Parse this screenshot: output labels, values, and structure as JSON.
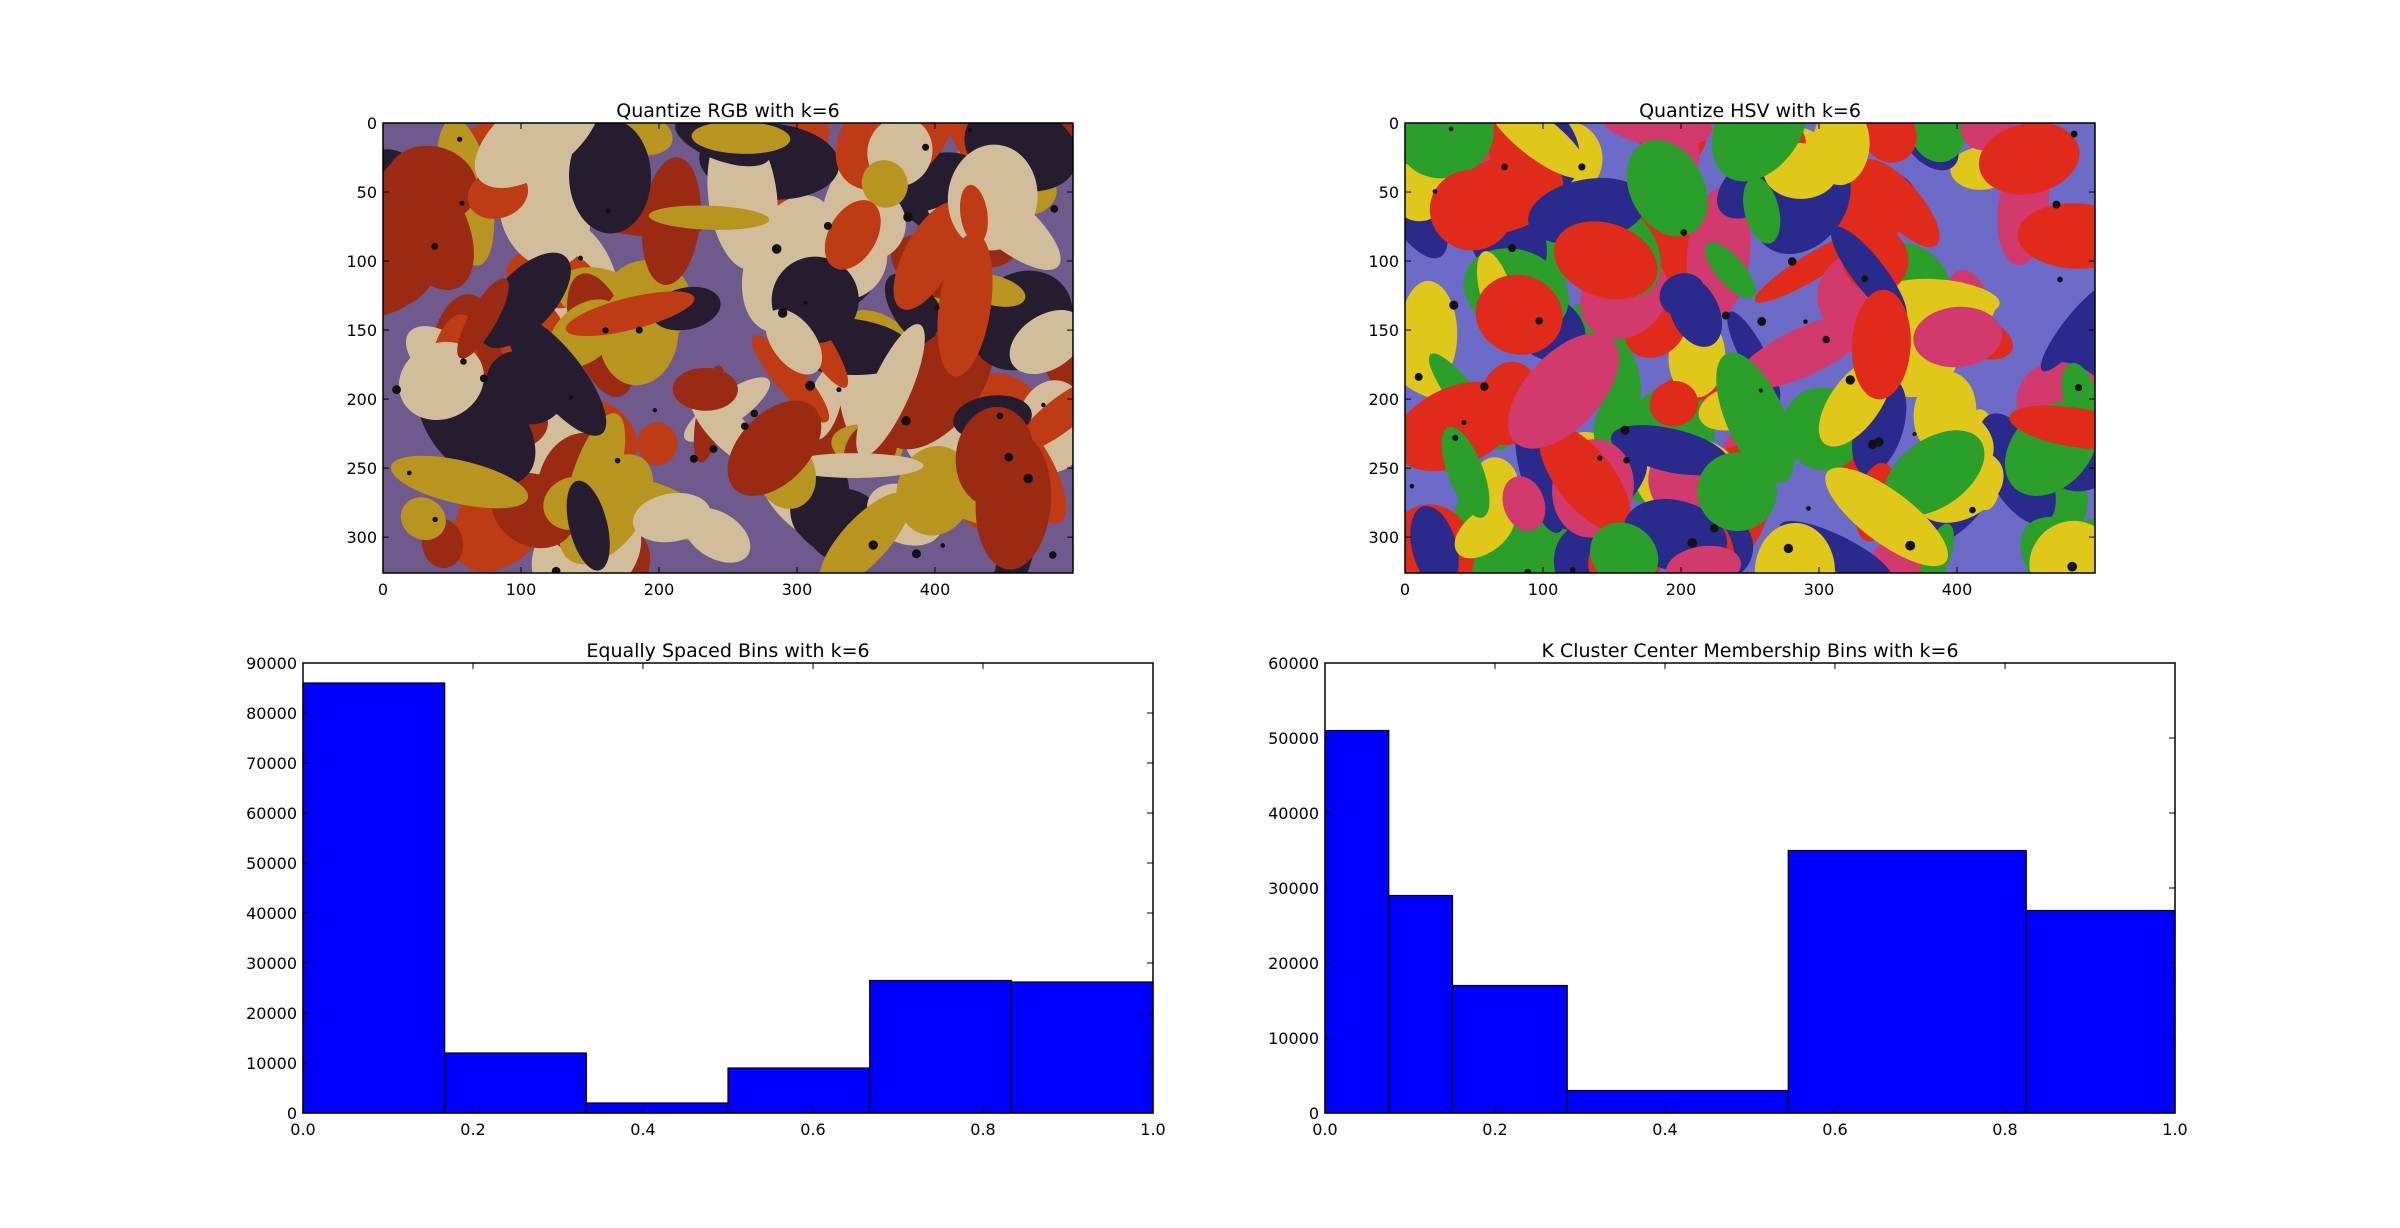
{
  "chart_data": [
    {
      "type": "image",
      "title": "Quantize RGB with k=6",
      "x_ticks": [
        "0",
        "100",
        "200",
        "300",
        "400"
      ],
      "y_ticks": [
        "0",
        "50",
        "100",
        "150",
        "200",
        "250",
        "300"
      ],
      "x_range": [
        0,
        500
      ],
      "y_range": [
        0,
        326
      ],
      "palette": [
        "#6e5a8c",
        "#b8951f",
        "#bf3b14",
        "#d2bd9a",
        "#251c30",
        "#9b2a12"
      ]
    },
    {
      "type": "image",
      "title": "Quantize HSV with k=6",
      "x_ticks": [
        "0",
        "100",
        "200",
        "300",
        "400"
      ],
      "y_ticks": [
        "0",
        "50",
        "100",
        "150",
        "200",
        "250",
        "300"
      ],
      "x_range": [
        0,
        500
      ],
      "y_range": [
        0,
        326
      ],
      "palette": [
        "#6c6cc8",
        "#e02a1a",
        "#e0c81a",
        "#2aa02a",
        "#d23a6e",
        "#2a2a8c"
      ]
    },
    {
      "type": "bar",
      "title": "Equally Spaced Bins with k=6",
      "bin_edges": [
        0.0,
        0.1667,
        0.3333,
        0.5,
        0.6667,
        0.8333,
        1.0
      ],
      "values": [
        86000,
        12000,
        2000,
        9000,
        26500,
        26200
      ],
      "xlim": [
        0,
        1
      ],
      "ylim": [
        0,
        90000
      ],
      "x_ticks": [
        "0.0",
        "0.2",
        "0.4",
        "0.6",
        "0.8",
        "1.0"
      ],
      "y_ticks": [
        "0",
        "10000",
        "20000",
        "30000",
        "40000",
        "50000",
        "60000",
        "70000",
        "80000",
        "90000"
      ],
      "color": "#0000ff"
    },
    {
      "type": "bar",
      "title": "K Cluster Center Membership Bins with k=6",
      "bin_edges": [
        0.0,
        0.075,
        0.15,
        0.285,
        0.545,
        0.825,
        1.0
      ],
      "values": [
        51000,
        29000,
        17000,
        3000,
        35000,
        27000
      ],
      "xlim": [
        0,
        1
      ],
      "ylim": [
        0,
        60000
      ],
      "x_ticks": [
        "0.0",
        "0.2",
        "0.4",
        "0.6",
        "0.8",
        "1.0"
      ],
      "y_ticks": [
        "0",
        "10000",
        "20000",
        "30000",
        "40000",
        "50000",
        "60000"
      ],
      "color": "#0000ff"
    }
  ]
}
